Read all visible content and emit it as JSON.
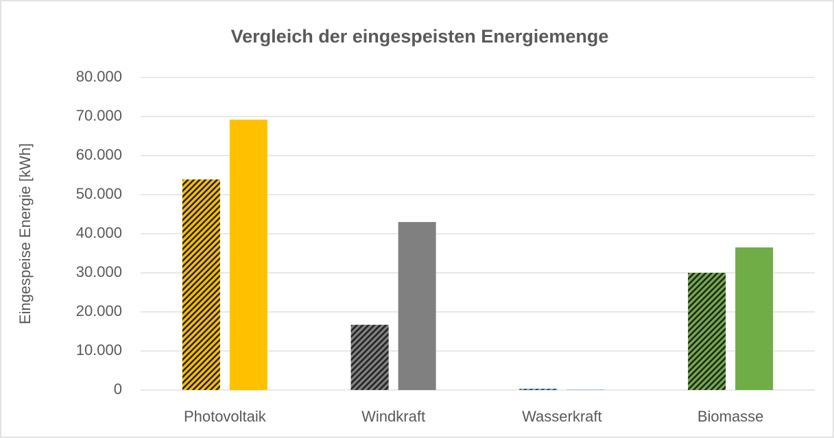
{
  "chart_data": {
    "type": "bar",
    "title": "Vergleich der eingespeisten Energiemenge",
    "y_label": "Eingespeise Energie [kWh]",
    "categories": [
      "Photovoltaik",
      "Windkraft",
      "Wasserkraft",
      "Biomasse"
    ],
    "category_colors": [
      "#ffc000",
      "#808080",
      "#5b9bd5",
      "#70ad47"
    ],
    "series": [
      {
        "hatched": true,
        "values": [
          53900,
          16700,
          300,
          30000
        ]
      },
      {
        "hatched": false,
        "values": [
          69200,
          43000,
          100,
          36500
        ]
      }
    ],
    "ylim": [
      0,
      80000
    ],
    "yticks": [
      0,
      {
        "value": 10000,
        "label": "10.000"
      },
      {
        "value": 20000,
        "label": "20.000"
      },
      {
        "value": 30000,
        "label": "30.000"
      },
      {
        "value": 40000,
        "label": "40.000"
      },
      {
        "value": 50000,
        "label": "50.000"
      },
      {
        "value": 60000,
        "label": "60.000"
      },
      {
        "value": 70000,
        "label": "70.000"
      },
      {
        "value": 80000,
        "label": "80.000"
      }
    ],
    "grid": true
  }
}
